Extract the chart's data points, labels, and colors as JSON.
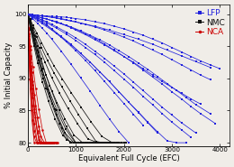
{
  "xlabel": "Equivalent Full Cycle (EFC)",
  "ylabel": "% Initial Capacity",
  "xlim": [
    0,
    4200
  ],
  "ylim": [
    79.5,
    101.5
  ],
  "xticks": [
    0,
    1000,
    2000,
    3000,
    4000
  ],
  "yticks": [
    80,
    85,
    90,
    95,
    100
  ],
  "background": "#f0ede8",
  "lfp_color": "#2222dd",
  "nmc_color": "#111111",
  "nca_color": "#cc0000",
  "lfp_series": [
    {
      "x": [
        0,
        100,
        200,
        300,
        400,
        500,
        600,
        700,
        800,
        900,
        1000,
        1200,
        1400,
        1600,
        1800,
        2000,
        2200,
        2400,
        2600,
        2800,
        3000,
        3200,
        3400,
        3600,
        3800,
        4000
      ],
      "y": [
        100,
        99.9,
        99.8,
        99.75,
        99.7,
        99.65,
        99.6,
        99.55,
        99.5,
        99.4,
        99.3,
        99.1,
        98.8,
        98.5,
        98.1,
        97.7,
        97.2,
        96.7,
        96.1,
        95.5,
        94.8,
        94.1,
        93.4,
        92.7,
        92.1,
        91.5
      ]
    },
    {
      "x": [
        0,
        100,
        200,
        300,
        400,
        500,
        600,
        700,
        800,
        900,
        1000,
        1200,
        1400,
        1600,
        1800,
        2000,
        2200,
        2400,
        2600,
        2800,
        3000,
        3200,
        3400,
        3600
      ],
      "y": [
        100,
        99.8,
        99.6,
        99.4,
        99.2,
        99.0,
        98.8,
        98.5,
        98.2,
        97.9,
        97.5,
        96.8,
        96.0,
        95.2,
        94.3,
        93.4,
        92.5,
        91.5,
        90.5,
        89.5,
        88.6,
        87.7,
        86.8,
        86.0
      ]
    },
    {
      "x": [
        0,
        100,
        200,
        300,
        400,
        500,
        600,
        700,
        800,
        1000,
        1200,
        1400,
        1600,
        1800,
        2000,
        2200,
        2400,
        2600,
        2800,
        3000,
        3200,
        3400,
        3600,
        3800
      ],
      "y": [
        100,
        99.9,
        99.8,
        99.7,
        99.6,
        99.5,
        99.4,
        99.3,
        99.1,
        98.8,
        98.4,
        98.0,
        97.5,
        97.0,
        96.4,
        95.8,
        95.1,
        94.4,
        93.7,
        92.9,
        92.1,
        91.3,
        90.5,
        89.8
      ]
    },
    {
      "x": [
        0,
        100,
        200,
        300,
        400,
        500,
        600,
        800,
        1000,
        1200,
        1400,
        1600,
        1800,
        2000,
        2200,
        2400,
        2600,
        2800,
        3000,
        3200,
        3500
      ],
      "y": [
        100,
        99.7,
        99.4,
        99.1,
        98.8,
        98.4,
        98.0,
        97.2,
        96.3,
        95.3,
        94.2,
        93.1,
        91.9,
        90.7,
        89.4,
        88.1,
        86.8,
        85.5,
        84.3,
        83.1,
        81.5
      ]
    },
    {
      "x": [
        0,
        100,
        200,
        300,
        400,
        500,
        700,
        900,
        1100,
        1300,
        1500,
        1700,
        1900,
        2100,
        2300,
        2500,
        2700,
        2900,
        3100,
        3300,
        3500,
        3800
      ],
      "y": [
        100,
        99.8,
        99.6,
        99.4,
        99.2,
        99.0,
        98.5,
        98.0,
        97.4,
        96.7,
        96.0,
        95.2,
        94.3,
        93.4,
        92.4,
        91.4,
        90.3,
        89.2,
        88.1,
        87.0,
        85.9,
        84.5
      ]
    },
    {
      "x": [
        0,
        100,
        200,
        300,
        500,
        700,
        900,
        1100,
        1300,
        1500,
        1700,
        1900,
        2100,
        2300,
        2500,
        2700
      ],
      "y": [
        100,
        99.5,
        99.0,
        98.5,
        97.5,
        96.4,
        95.2,
        93.9,
        92.5,
        91.0,
        89.5,
        87.9,
        86.3,
        84.7,
        83.1,
        81.5
      ]
    },
    {
      "x": [
        0,
        100,
        200,
        300,
        400,
        500,
        600,
        800,
        1000,
        1200,
        1400,
        1600,
        1800,
        2000,
        2200,
        2400
      ],
      "y": [
        100,
        99.6,
        99.2,
        98.7,
        98.2,
        97.6,
        97.0,
        95.7,
        94.3,
        92.8,
        91.2,
        89.5,
        87.8,
        86.1,
        84.4,
        82.7
      ]
    },
    {
      "x": [
        0,
        100,
        200,
        300,
        400,
        500,
        700,
        900,
        1100,
        1300,
        1500,
        1700,
        1900,
        2100
      ],
      "y": [
        100,
        99.3,
        98.6,
        97.8,
        97.0,
        96.1,
        94.2,
        92.2,
        90.1,
        88.0,
        85.8,
        83.7,
        81.7,
        80.0
      ]
    },
    {
      "x": [
        0,
        100,
        200,
        300,
        400,
        500,
        600,
        800,
        1000,
        1200,
        1400,
        1600,
        1800,
        2000,
        2200,
        2400,
        2600,
        2800,
        3000,
        3200,
        3400,
        3600,
        3900
      ],
      "y": [
        100,
        99.8,
        99.6,
        99.4,
        99.2,
        99.0,
        98.7,
        98.2,
        97.6,
        96.9,
        96.2,
        95.3,
        94.4,
        93.4,
        92.4,
        91.3,
        90.2,
        89.1,
        87.9,
        86.8,
        85.6,
        84.5,
        83.0
      ]
    },
    {
      "x": [
        0,
        100,
        200,
        300,
        400,
        600,
        800,
        1000,
        1200,
        1400,
        1600,
        1800,
        2000,
        2200,
        2400,
        2600,
        2800,
        3000,
        3200,
        3400
      ],
      "y": [
        100,
        99.7,
        99.4,
        99.0,
        98.6,
        97.8,
        96.9,
        95.9,
        94.8,
        93.7,
        92.5,
        91.2,
        89.9,
        88.6,
        87.2,
        85.9,
        84.5,
        83.2,
        82.0,
        80.8
      ]
    },
    {
      "x": [
        0,
        100,
        200,
        300,
        500,
        700,
        900,
        1100,
        1400,
        1700,
        2000,
        2300,
        2600,
        2900,
        3200,
        3500,
        3800
      ],
      "y": [
        100,
        99.9,
        99.8,
        99.7,
        99.5,
        99.2,
        98.9,
        98.6,
        98.1,
        97.5,
        96.8,
        96.1,
        95.3,
        94.4,
        93.5,
        92.6,
        91.7
      ]
    },
    {
      "x": [
        0,
        100,
        200,
        300,
        400,
        500,
        700,
        900,
        1100,
        1300,
        1500,
        1700,
        1900,
        2100,
        2300,
        2500,
        2700,
        2900,
        3100,
        3300
      ],
      "y": [
        100,
        99.6,
        99.2,
        98.8,
        98.3,
        97.7,
        96.5,
        95.3,
        93.9,
        92.5,
        91.0,
        89.5,
        87.9,
        86.3,
        84.8,
        83.2,
        81.7,
        80.3,
        80.0,
        80.0
      ]
    }
  ],
  "nmc_series": [
    {
      "x": [
        0,
        50,
        100,
        150,
        200,
        280,
        380,
        500,
        650,
        800,
        1000,
        1200,
        1400,
        1600,
        1800
      ],
      "y": [
        100,
        99.0,
        97.8,
        96.5,
        95.0,
        93.0,
        90.5,
        88.0,
        85.0,
        82.5,
        80.0,
        80.0,
        80.0,
        80.0,
        80.0
      ]
    },
    {
      "x": [
        0,
        50,
        100,
        150,
        200,
        280,
        380,
        500,
        650,
        800,
        950,
        1100,
        1300,
        1500,
        1700,
        1900
      ],
      "y": [
        100,
        98.5,
        97.0,
        95.3,
        93.5,
        91.2,
        88.5,
        86.0,
        83.0,
        80.5,
        80.0,
        80.0,
        80.0,
        80.0,
        80.0,
        80.0
      ]
    },
    {
      "x": [
        0,
        50,
        100,
        150,
        200,
        300,
        420,
        560,
        720,
        880,
        1050,
        1230,
        1420,
        1600
      ],
      "y": [
        100,
        98.8,
        97.5,
        96.0,
        94.3,
        91.5,
        88.3,
        85.2,
        82.2,
        80.0,
        80.0,
        80.0,
        80.0,
        80.0
      ]
    },
    {
      "x": [
        0,
        60,
        130,
        220,
        330,
        460,
        610,
        780,
        960,
        1140,
        1320,
        1500,
        1680,
        1850,
        2000
      ],
      "y": [
        100,
        98.2,
        96.2,
        94.0,
        91.5,
        88.8,
        86.2,
        83.6,
        81.2,
        80.0,
        80.0,
        80.0,
        80.0,
        80.0,
        80.0
      ]
    },
    {
      "x": [
        0,
        60,
        130,
        210,
        310,
        430,
        570,
        730,
        910,
        1100,
        1290,
        1480,
        1650
      ],
      "y": [
        100,
        97.5,
        95.0,
        92.3,
        89.4,
        86.5,
        83.7,
        81.1,
        80.0,
        80.0,
        80.0,
        80.0,
        80.0
      ]
    },
    {
      "x": [
        0,
        60,
        140,
        240,
        360,
        500,
        660,
        840,
        1040,
        1250,
        1460,
        1670,
        1870,
        2050
      ],
      "y": [
        100,
        98.5,
        96.7,
        94.7,
        92.5,
        90.1,
        87.7,
        85.3,
        82.9,
        80.6,
        80.0,
        80.0,
        80.0,
        80.0
      ]
    },
    {
      "x": [
        0,
        50,
        110,
        190,
        290,
        410,
        550,
        710,
        880,
        1060,
        1240,
        1420,
        1580,
        1720,
        1900,
        2050
      ],
      "y": [
        100,
        99.0,
        97.8,
        96.4,
        94.7,
        92.8,
        90.8,
        88.7,
        86.5,
        84.3,
        82.2,
        80.2,
        80.0,
        80.0,
        80.0,
        80.0
      ]
    },
    {
      "x": [
        0,
        60,
        130,
        220,
        330,
        460,
        610,
        780,
        960,
        1150,
        1350,
        1540,
        1720,
        1900
      ],
      "y": [
        100,
        97.8,
        95.4,
        92.8,
        90.0,
        87.2,
        84.3,
        81.5,
        80.0,
        80.0,
        80.0,
        80.0,
        80.0,
        80.0
      ]
    },
    {
      "x": [
        0,
        60,
        130,
        220,
        330,
        460,
        610,
        790,
        990,
        1200,
        1420,
        1640,
        1860
      ],
      "y": [
        100,
        98.0,
        95.8,
        93.3,
        90.6,
        87.8,
        85.0,
        82.1,
        80.0,
        80.0,
        80.0,
        80.0,
        80.0
      ]
    },
    {
      "x": [
        0,
        50,
        110,
        190,
        290,
        410,
        550,
        720,
        910,
        1110,
        1320,
        1540,
        1760,
        1950
      ],
      "y": [
        100,
        99.2,
        98.2,
        97.0,
        95.5,
        93.8,
        91.9,
        89.9,
        87.7,
        85.5,
        83.2,
        81.0,
        80.0,
        80.0
      ]
    }
  ],
  "nca_series": [
    {
      "x": [
        0,
        20,
        50,
        90,
        140,
        200,
        270,
        350,
        440,
        530,
        600
      ],
      "y": [
        100,
        97.5,
        94.5,
        91.0,
        87.5,
        84.0,
        81.0,
        80.0,
        80.0,
        80.0,
        80.0
      ]
    },
    {
      "x": [
        0,
        20,
        50,
        90,
        140,
        200,
        270,
        350,
        430,
        510,
        580
      ],
      "y": [
        100,
        96.8,
        93.0,
        89.0,
        85.2,
        81.8,
        80.0,
        80.0,
        80.0,
        80.0,
        80.0
      ]
    },
    {
      "x": [
        0,
        20,
        50,
        90,
        140,
        200,
        270,
        340,
        410,
        480
      ],
      "y": [
        100,
        96.0,
        91.5,
        87.0,
        83.0,
        80.0,
        80.0,
        80.0,
        80.0,
        80.0
      ]
    },
    {
      "x": [
        0,
        25,
        60,
        105,
        160,
        225,
        300,
        380,
        460,
        540
      ],
      "y": [
        100,
        97.0,
        93.5,
        89.5,
        85.8,
        82.5,
        80.0,
        80.0,
        80.0,
        80.0
      ]
    },
    {
      "x": [
        0,
        20,
        50,
        90,
        140,
        200,
        265,
        335,
        405,
        470
      ],
      "y": [
        100,
        95.5,
        90.5,
        85.8,
        81.8,
        80.0,
        80.0,
        80.0,
        80.0,
        80.0
      ]
    },
    {
      "x": [
        0,
        25,
        60,
        110,
        165,
        230,
        305,
        385,
        470,
        555,
        630
      ],
      "y": [
        100,
        97.8,
        95.0,
        91.8,
        88.5,
        85.2,
        82.0,
        80.0,
        80.0,
        80.0,
        80.0
      ]
    },
    {
      "x": [
        0,
        20,
        50,
        90,
        140,
        200,
        265,
        335,
        400,
        460
      ],
      "y": [
        100,
        96.5,
        92.5,
        88.5,
        84.8,
        81.5,
        80.0,
        80.0,
        80.0,
        80.0
      ]
    },
    {
      "x": [
        0,
        20,
        50,
        88,
        135,
        190,
        252,
        318,
        380,
        440
      ],
      "y": [
        100,
        94.5,
        88.5,
        83.5,
        80.0,
        80.0,
        80.0,
        80.0,
        80.0,
        80.0
      ]
    },
    {
      "x": [
        0,
        25,
        60,
        105,
        160,
        225,
        295,
        370,
        445,
        515,
        580
      ],
      "y": [
        100,
        96.2,
        92.0,
        87.8,
        84.0,
        80.5,
        80.0,
        80.0,
        80.0,
        80.0,
        80.0
      ]
    },
    {
      "x": [
        0,
        20,
        48,
        85,
        130,
        183,
        243,
        308,
        373,
        435,
        490
      ],
      "y": [
        100,
        95.0,
        89.8,
        85.0,
        81.0,
        80.0,
        80.0,
        80.0,
        80.0,
        80.0,
        80.0
      ]
    }
  ]
}
